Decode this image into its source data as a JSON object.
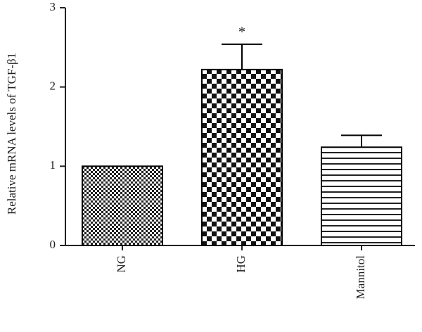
{
  "chart_data": {
    "type": "bar",
    "y_label": "Relative mRNA levels of TGF-β1",
    "categories": [
      "NG",
      "HG",
      "Mannitol"
    ],
    "values": [
      1.0,
      2.22,
      1.24
    ],
    "errors": [
      null,
      0.32,
      0.15
    ],
    "patterns": [
      "fine-check",
      "check",
      "hlines"
    ],
    "annotation": "*",
    "annotation_category": 1,
    "color": "#000000",
    "ylim": [
      0,
      3
    ],
    "yticks": [
      0,
      1,
      2,
      3
    ],
    "grid": false
  }
}
